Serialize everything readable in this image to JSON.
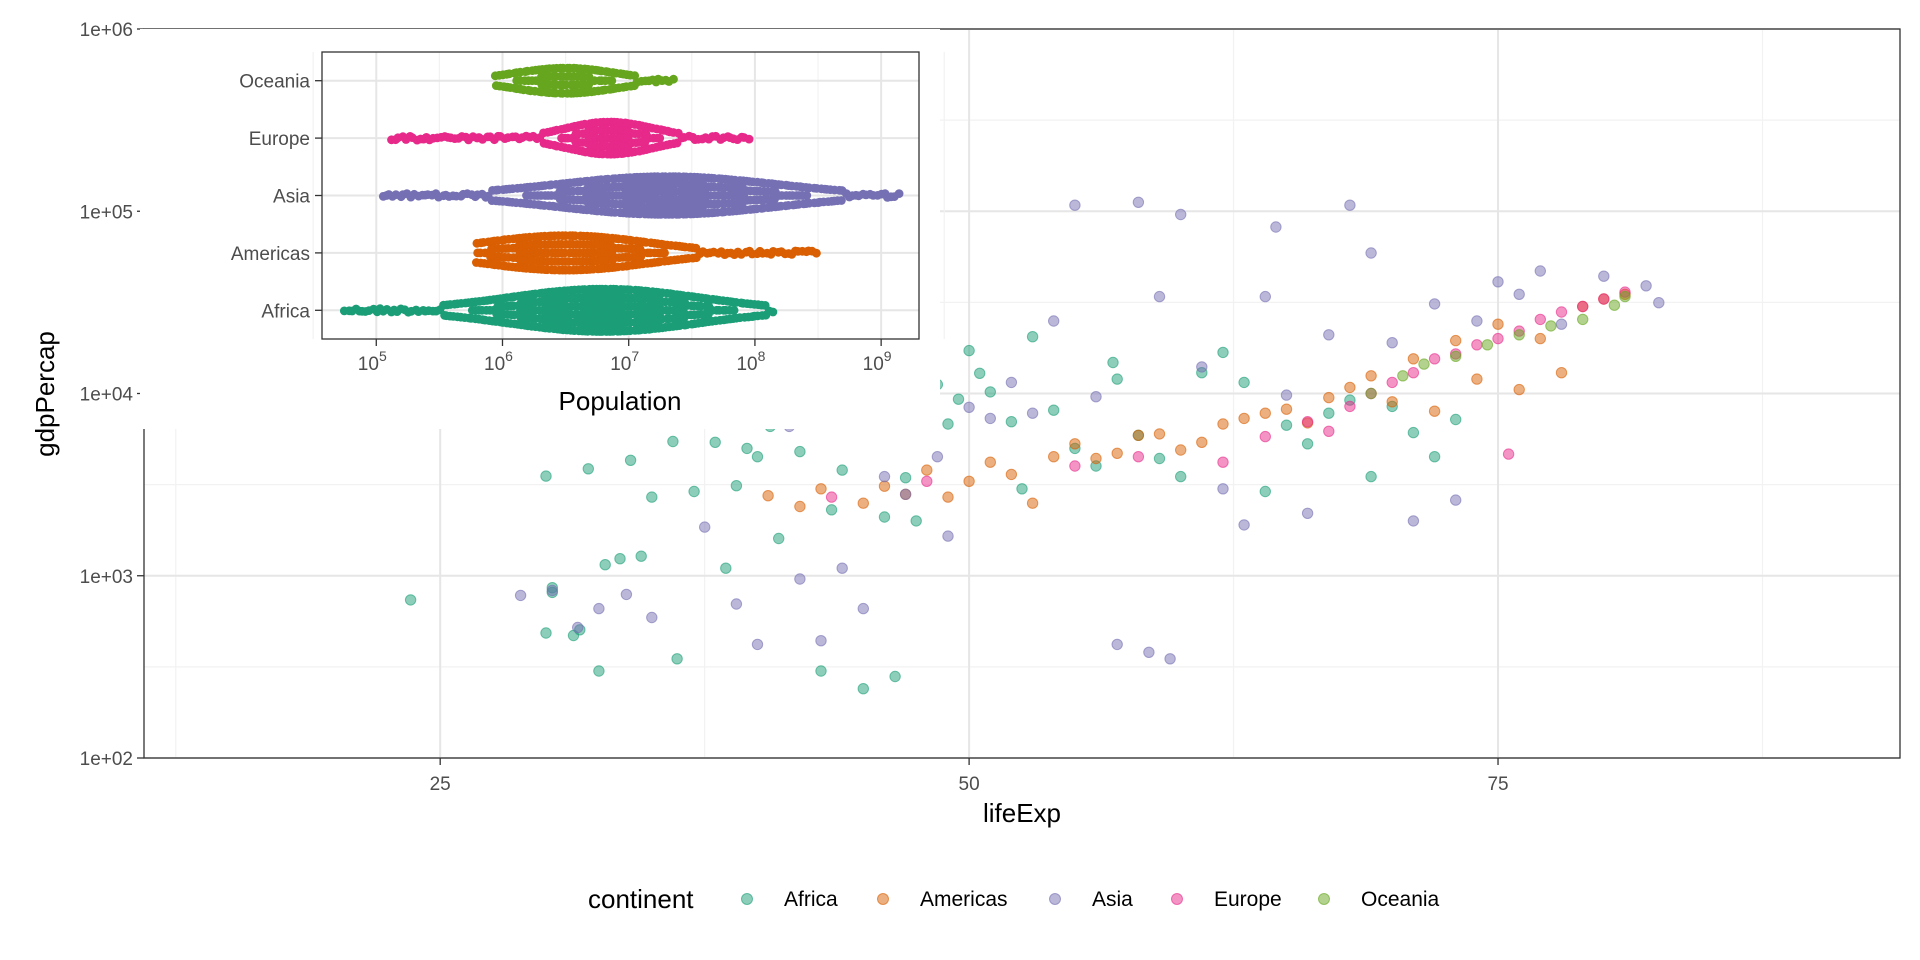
{
  "chart_data": [
    {
      "type": "scatter",
      "xlabel": "lifeExp",
      "ylabel": "gdpPercap",
      "x_log": false,
      "y_log": true,
      "xlim": [
        11,
        94
      ],
      "ylim": [
        100,
        1000000
      ],
      "x_ticks": [
        25,
        50,
        75
      ],
      "x_tick_labels": [
        "25",
        "50",
        "75"
      ],
      "y_ticks": [
        100,
        1000,
        10000,
        100000,
        1000000
      ],
      "y_tick_labels": [
        "1e+02",
        "1e+03",
        "1e+04",
        "1e+05",
        "1e+06"
      ],
      "grid": true,
      "legend_position": "bottom",
      "legend_title": "continent",
      "series": [
        {
          "name": "Africa",
          "color": "#1B9E77",
          "points": [
            [
              23.6,
              737
            ],
            [
              30.0,
              485
            ],
            [
              30.0,
              3520
            ],
            [
              30.3,
              810
            ],
            [
              30.3,
              860
            ],
            [
              31.3,
              470
            ],
            [
              31.6,
              505
            ],
            [
              32.0,
              3860
            ],
            [
              32.5,
              300
            ],
            [
              32.8,
              1150
            ],
            [
              33.5,
              1240
            ],
            [
              34.0,
              4300
            ],
            [
              34.5,
              1280
            ],
            [
              35.0,
              2700
            ],
            [
              36.0,
              5450
            ],
            [
              36.2,
              350
            ],
            [
              37.0,
              2900
            ],
            [
              38.0,
              5400
            ],
            [
              38.5,
              1100
            ],
            [
              39.0,
              3120
            ],
            [
              39.5,
              5000
            ],
            [
              40.0,
              4500
            ],
            [
              40.6,
              6600
            ],
            [
              41.0,
              1600
            ],
            [
              42.0,
              4800
            ],
            [
              43.0,
              300
            ],
            [
              43.5,
              2300
            ],
            [
              44.0,
              3800
            ],
            [
              45.0,
              240
            ],
            [
              46.0,
              2100
            ],
            [
              46.5,
              280
            ],
            [
              47.0,
              3450
            ],
            [
              47.5,
              2000
            ],
            [
              48.5,
              11200
            ],
            [
              49.0,
              6800
            ],
            [
              49.5,
              9300
            ],
            [
              50.0,
              17200
            ],
            [
              50.5,
              12900
            ],
            [
              51.0,
              10200
            ],
            [
              52.0,
              7000
            ],
            [
              52.5,
              3000
            ],
            [
              53.0,
              20500
            ],
            [
              54.0,
              8100
            ],
            [
              55.0,
              5000
            ],
            [
              56.0,
              4000
            ],
            [
              56.8,
              14800
            ],
            [
              57.0,
              12000
            ],
            [
              58.0,
              5900
            ],
            [
              59.0,
              4400
            ],
            [
              60.0,
              3500
            ],
            [
              61.0,
              13000
            ],
            [
              62.0,
              16800
            ],
            [
              63.0,
              11500
            ],
            [
              64.0,
              2900
            ],
            [
              65.0,
              6700
            ],
            [
              66.0,
              5300
            ],
            [
              67.0,
              7800
            ],
            [
              68.0,
              9200
            ],
            [
              69.0,
              3500
            ],
            [
              70.0,
              8500
            ],
            [
              71.0,
              6100
            ],
            [
              72.0,
              4500
            ],
            [
              73.0,
              7200
            ]
          ]
        },
        {
          "name": "Americas",
          "color": "#D95F02",
          "points": [
            [
              40.5,
              2750
            ],
            [
              42.0,
              2400
            ],
            [
              43.0,
              3000
            ],
            [
              45.0,
              2500
            ],
            [
              46.0,
              3100
            ],
            [
              47.0,
              2800
            ],
            [
              48.0,
              3800
            ],
            [
              49.0,
              2700
            ],
            [
              50.0,
              3300
            ],
            [
              51.0,
              4200
            ],
            [
              52.0,
              3600
            ],
            [
              53.0,
              2500
            ],
            [
              54.0,
              4500
            ],
            [
              55.0,
              5300
            ],
            [
              56.0,
              4400
            ],
            [
              57.0,
              4700
            ],
            [
              58.0,
              5900
            ],
            [
              59.0,
              6000
            ],
            [
              60.0,
              4900
            ],
            [
              61.0,
              5400
            ],
            [
              62.0,
              6800
            ],
            [
              63.0,
              7300
            ],
            [
              64.0,
              7800
            ],
            [
              65.0,
              8200
            ],
            [
              66.0,
              6900
            ],
            [
              67.0,
              9500
            ],
            [
              68.0,
              10800
            ],
            [
              69.0,
              12500
            ],
            [
              70.0,
              9000
            ],
            [
              71.0,
              15500
            ],
            [
              72.0,
              8000
            ],
            [
              73.0,
              19500
            ],
            [
              74.0,
              12000
            ],
            [
              75.0,
              24000
            ],
            [
              76.0,
              10500
            ],
            [
              77.0,
              20000
            ],
            [
              78.0,
              13000
            ],
            [
              79.0,
              30000
            ],
            [
              80.0,
              33000
            ],
            [
              81.0,
              35000
            ]
          ]
        },
        {
          "name": "Asia",
          "color": "#7570B3",
          "points": [
            [
              28.8,
              780
            ],
            [
              30.3,
              830
            ],
            [
              31.5,
              520
            ],
            [
              32.5,
              660
            ],
            [
              33.8,
              790
            ],
            [
              35.0,
              590
            ],
            [
              37.5,
              1850
            ],
            [
              39.0,
              700
            ],
            [
              40.0,
              420
            ],
            [
              41.5,
              6600
            ],
            [
              42.0,
              960
            ],
            [
              43.0,
              440
            ],
            [
              44.0,
              1100
            ],
            [
              45.0,
              660
            ],
            [
              46.0,
              3500
            ],
            [
              47.0,
              2800
            ],
            [
              48.5,
              4500
            ],
            [
              49.0,
              1650
            ],
            [
              50.0,
              8400
            ],
            [
              51.0,
              7300
            ],
            [
              52.0,
              11500
            ],
            [
              53.0,
              7800
            ],
            [
              54.0,
              25000
            ],
            [
              55.0,
              108000
            ],
            [
              56.0,
              9600
            ],
            [
              57.0,
              420
            ],
            [
              58.0,
              112000
            ],
            [
              58.5,
              380
            ],
            [
              59.0,
              34000
            ],
            [
              59.5,
              350
            ],
            [
              60.0,
              96000
            ],
            [
              61.0,
              14000
            ],
            [
              62.0,
              3000
            ],
            [
              63.0,
              1900
            ],
            [
              64.0,
              34000
            ],
            [
              64.5,
              82000
            ],
            [
              65.0,
              9800
            ],
            [
              66.0,
              2200
            ],
            [
              67.0,
              21000
            ],
            [
              68.0,
              108000
            ],
            [
              69.0,
              59000
            ],
            [
              70.0,
              19000
            ],
            [
              71.0,
              2000
            ],
            [
              72.0,
              31000
            ],
            [
              73.0,
              2600
            ],
            [
              74.0,
              25000
            ],
            [
              75.0,
              41000
            ],
            [
              76.0,
              35000
            ],
            [
              77.0,
              47000
            ],
            [
              78.0,
              24000
            ],
            [
              80.0,
              44000
            ],
            [
              82.0,
              39000
            ],
            [
              82.6,
              31500
            ]
          ]
        },
        {
          "name": "Europe",
          "color": "#E7298A",
          "points": [
            [
              43.5,
              2700
            ],
            [
              48.0,
              3300
            ],
            [
              55.0,
              4000
            ],
            [
              58.0,
              4500
            ],
            [
              62.0,
              4200
            ],
            [
              64.0,
              5800
            ],
            [
              66.0,
              7000
            ],
            [
              67.0,
              6200
            ],
            [
              68.0,
              8500
            ],
            [
              69.0,
              10000
            ],
            [
              70.0,
              11500
            ],
            [
              71.0,
              13000
            ],
            [
              72.0,
              15500
            ],
            [
              73.0,
              16500
            ],
            [
              74.0,
              18500
            ],
            [
              75.0,
              20000
            ],
            [
              75.5,
              4650
            ],
            [
              76.0,
              22000
            ],
            [
              77.0,
              25500
            ],
            [
              78.0,
              28000
            ],
            [
              79.0,
              30000
            ],
            [
              80.0,
              33000
            ],
            [
              81.0,
              36000
            ]
          ]
        },
        {
          "name": "Oceania",
          "color": "#66A61E",
          "points": [
            [
              69.0,
              10000
            ],
            [
              70.5,
              12500
            ],
            [
              71.5,
              14500
            ],
            [
              73.0,
              16000
            ],
            [
              74.5,
              18500
            ],
            [
              76.0,
              21000
            ],
            [
              77.5,
              23500
            ],
            [
              79.0,
              25500
            ],
            [
              80.5,
              30500
            ],
            [
              81.0,
              34000
            ]
          ]
        }
      ]
    },
    {
      "type": "scatter",
      "subtype": "beeswarm",
      "xlabel": "Population",
      "x_log": true,
      "xlim_log10": [
        4.57,
        9.3
      ],
      "x_tick_bases": [
        "10",
        "10",
        "10",
        "10",
        "10"
      ],
      "x_tick_exponents": [
        "5",
        "6",
        "7",
        "8",
        "9"
      ],
      "x_tick_values": [
        100000,
        1000000,
        10000000,
        100000000,
        1000000000
      ],
      "grid": true,
      "categories": [
        "Africa",
        "Americas",
        "Asia",
        "Europe",
        "Oceania"
      ],
      "groups": [
        {
          "name": "Africa",
          "color": "#1B9E77",
          "range_log10": [
            4.75,
            8.15
          ],
          "peak_log10": 6.8,
          "max_halfwidth": 0.37,
          "spread_log10": 0.75
        },
        {
          "name": "Americas",
          "color": "#D95F02",
          "range_log10": [
            5.8,
            8.5
          ],
          "peak_log10": 6.5,
          "max_halfwidth": 0.3,
          "spread_log10": 0.65
        },
        {
          "name": "Asia",
          "color": "#7570B3",
          "range_log10": [
            5.05,
            9.15
          ],
          "peak_log10": 7.3,
          "max_halfwidth": 0.33,
          "spread_log10": 0.85
        },
        {
          "name": "Europe",
          "color": "#E7298A",
          "range_log10": [
            5.12,
            7.97
          ],
          "peak_log10": 6.85,
          "max_halfwidth": 0.28,
          "spread_log10": 0.35
        },
        {
          "name": "Oceania",
          "color": "#66A61E",
          "range_log10": [
            5.95,
            7.35
          ],
          "peak_log10": 6.5,
          "max_halfwidth": 0.22,
          "spread_log10": 0.4
        }
      ]
    }
  ]
}
